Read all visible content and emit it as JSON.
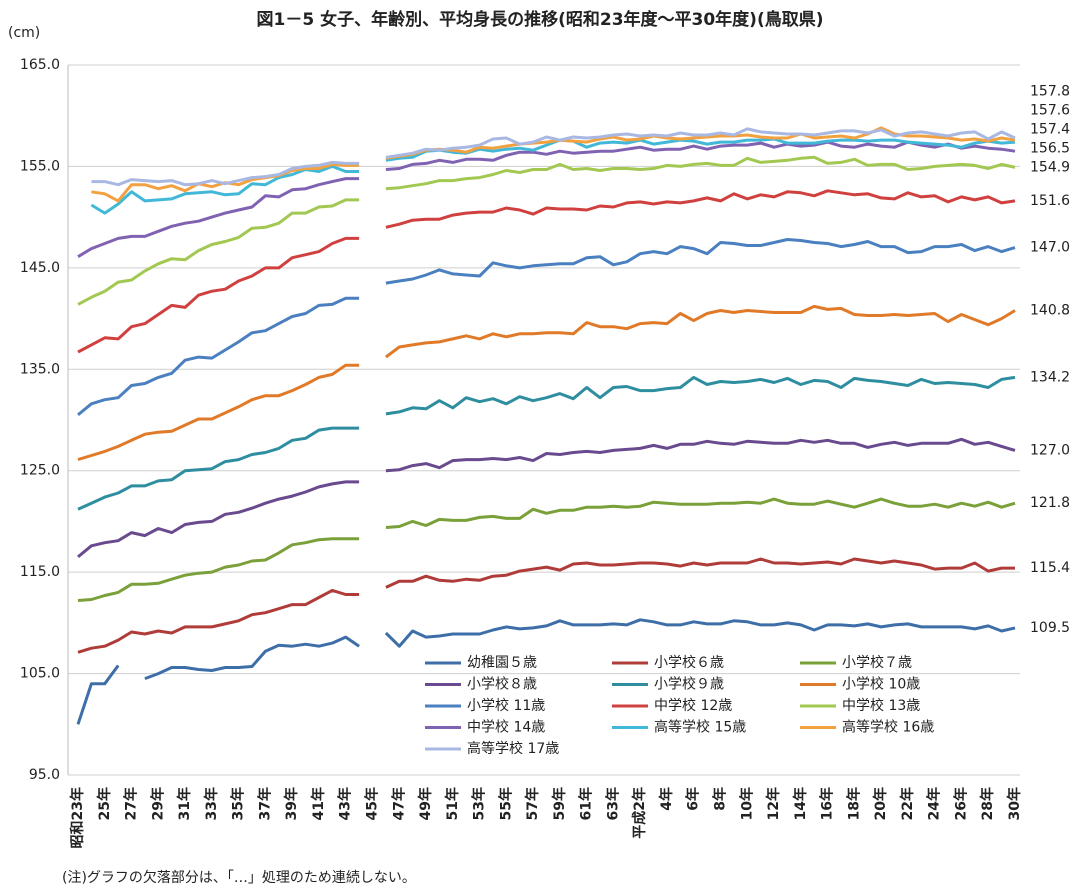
{
  "chart_data": {
    "type": "line",
    "title": "図1－5 女子、年齢別、平均身長の推移(昭和23年度～平30年度)(鳥取県)",
    "unit": "(cm)",
    "note": "(注)グラフの欠落部分は、「…」処理のため連続しない。",
    "categories": [
      "昭和23年",
      null,
      "25年",
      null,
      "27年",
      null,
      "29年",
      null,
      "31年",
      null,
      "33年",
      null,
      "35年",
      null,
      "37年",
      null,
      "39年",
      null,
      "41年",
      null,
      "43年",
      null,
      "45年",
      null,
      "47年",
      null,
      "49年",
      null,
      "51年",
      null,
      "53年",
      null,
      "55年",
      null,
      "57年",
      null,
      "59年",
      null,
      "61年",
      null,
      "63年",
      null,
      "平成2年",
      null,
      "4年",
      null,
      "6年",
      null,
      "8年",
      null,
      "10年",
      null,
      "12年",
      null,
      "14年",
      null,
      "16年",
      null,
      "18年",
      null,
      "20年",
      null,
      "22年",
      null,
      "24年",
      null,
      "26年",
      null,
      "28年",
      null,
      "30年"
    ],
    "ylim": [
      95,
      165
    ],
    "yticks": [
      {
        "value": 95,
        "label": "95.0"
      },
      {
        "value": 105,
        "label": "105.0"
      },
      {
        "value": 115,
        "label": "115.0"
      },
      {
        "value": 125,
        "label": "125.0"
      },
      {
        "value": 135,
        "label": "135.0"
      },
      {
        "value": 145,
        "label": "145.0"
      },
      {
        "value": 155,
        "label": "155.0"
      },
      {
        "value": 165,
        "label": "165.0"
      }
    ],
    "grid": true,
    "series": [
      {
        "name": "幼稚園５歳",
        "color": "#3d6ea8",
        "end_label": "109.5",
        "values": [
          100.0,
          104.0,
          104.0,
          105.8,
          null,
          104.5,
          105.0,
          105.6,
          105.6,
          105.4,
          105.3,
          105.6,
          105.6,
          105.7,
          107.2,
          107.8,
          107.7,
          107.9,
          107.7,
          108.0,
          108.6,
          107.7,
          null,
          109.0,
          107.7,
          109.2,
          108.6,
          108.7,
          108.9,
          108.9,
          108.9,
          109.3,
          109.6,
          109.4,
          109.5,
          109.7,
          110.2,
          109.8,
          109.8,
          109.8,
          109.9,
          109.8,
          110.3,
          110.1,
          109.8,
          109.8,
          110.1,
          109.9,
          109.9,
          110.2,
          110.1,
          109.8,
          109.8,
          110.0,
          109.8,
          109.3,
          109.8,
          109.8,
          109.7,
          109.9,
          109.6,
          109.8,
          109.9,
          109.6,
          109.6,
          109.6,
          109.6,
          109.4,
          109.7,
          109.2,
          109.5
        ]
      },
      {
        "name": "小学校６歳",
        "color": "#b03c3a",
        "end_label": "115.4",
        "values": [
          107.1,
          107.5,
          107.7,
          108.3,
          109.1,
          108.9,
          109.2,
          109.0,
          109.6,
          109.6,
          109.6,
          109.9,
          110.2,
          110.8,
          111.0,
          111.4,
          111.8,
          111.8,
          112.5,
          113.2,
          112.8,
          112.8,
          null,
          113.5,
          114.1,
          114.1,
          114.6,
          114.2,
          114.1,
          114.3,
          114.2,
          114.6,
          114.7,
          115.1,
          115.3,
          115.5,
          115.2,
          115.8,
          115.9,
          115.7,
          115.7,
          115.8,
          115.9,
          115.9,
          115.8,
          115.6,
          115.9,
          115.7,
          115.9,
          115.9,
          115.9,
          116.3,
          115.9,
          115.9,
          115.8,
          115.9,
          116.0,
          115.8,
          116.3,
          116.1,
          115.9,
          116.1,
          115.9,
          115.7,
          115.3,
          115.4,
          115.4,
          115.9,
          115.1,
          115.4,
          115.4
        ]
      },
      {
        "name": "小学校７歳",
        "color": "#7aa03a",
        "end_label": "121.8",
        "values": [
          112.2,
          112.3,
          112.7,
          113.0,
          113.8,
          113.8,
          113.9,
          114.3,
          114.7,
          114.9,
          115.0,
          115.5,
          115.7,
          116.1,
          116.2,
          116.9,
          117.7,
          117.9,
          118.2,
          118.3,
          118.3,
          118.3,
          null,
          119.4,
          119.5,
          120.0,
          119.6,
          120.2,
          120.1,
          120.1,
          120.4,
          120.5,
          120.3,
          120.3,
          121.2,
          120.8,
          121.1,
          121.1,
          121.4,
          121.4,
          121.5,
          121.4,
          121.5,
          121.9,
          121.8,
          121.7,
          121.7,
          121.7,
          121.8,
          121.8,
          121.9,
          121.8,
          122.2,
          121.8,
          121.7,
          121.7,
          122.0,
          121.7,
          121.4,
          121.8,
          122.2,
          121.8,
          121.5,
          121.5,
          121.7,
          121.4,
          121.8,
          121.5,
          121.9,
          121.4,
          121.8
        ]
      },
      {
        "name": "小学校８歳",
        "color": "#6a4a8e",
        "end_label": "127.0",
        "values": [
          116.5,
          117.6,
          117.9,
          118.1,
          118.9,
          118.6,
          119.3,
          118.9,
          119.7,
          119.9,
          120.0,
          120.7,
          120.9,
          121.3,
          121.8,
          122.2,
          122.5,
          122.9,
          123.4,
          123.7,
          123.9,
          123.9,
          null,
          125.0,
          125.1,
          125.5,
          125.7,
          125.3,
          126.0,
          126.1,
          126.1,
          126.2,
          126.1,
          126.3,
          126.0,
          126.7,
          126.6,
          126.8,
          126.9,
          126.8,
          127.0,
          127.1,
          127.2,
          127.5,
          127.2,
          127.6,
          127.6,
          127.9,
          127.7,
          127.6,
          127.9,
          127.8,
          127.7,
          127.7,
          128.0,
          127.8,
          128.0,
          127.7,
          127.7,
          127.3,
          127.6,
          127.8,
          127.5,
          127.7,
          127.7,
          127.7,
          128.1,
          127.6,
          127.8,
          127.4,
          127.0
        ]
      },
      {
        "name": "小学校９歳",
        "color": "#2e8ea0",
        "end_label": "134.2",
        "values": [
          121.2,
          121.8,
          122.4,
          122.8,
          123.5,
          123.5,
          124.0,
          124.1,
          125.0,
          125.1,
          125.2,
          125.9,
          126.1,
          126.6,
          126.8,
          127.2,
          128.0,
          128.2,
          129.0,
          129.2,
          129.2,
          129.2,
          null,
          130.6,
          130.8,
          131.2,
          131.1,
          131.9,
          131.2,
          132.2,
          131.8,
          132.1,
          131.6,
          132.3,
          131.9,
          132.2,
          132.6,
          132.1,
          133.2,
          132.2,
          133.2,
          133.3,
          132.9,
          132.9,
          133.1,
          133.2,
          134.2,
          133.5,
          133.8,
          133.7,
          133.8,
          134.0,
          133.7,
          134.1,
          133.5,
          133.9,
          133.8,
          133.2,
          134.1,
          133.9,
          133.8,
          133.6,
          133.4,
          134.0,
          133.6,
          133.7,
          133.6,
          133.5,
          133.2,
          134.0,
          134.2
        ]
      },
      {
        "name": "小学校 10歳",
        "color": "#e07a28",
        "end_label": "140.8",
        "values": [
          126.1,
          126.5,
          126.9,
          127.4,
          128.0,
          128.6,
          128.8,
          128.9,
          129.5,
          130.1,
          130.1,
          130.7,
          131.3,
          132.0,
          132.4,
          132.4,
          132.9,
          133.5,
          134.2,
          134.5,
          135.4,
          135.4,
          null,
          136.2,
          137.2,
          137.4,
          137.6,
          137.7,
          138.0,
          138.3,
          138.0,
          138.5,
          138.2,
          138.5,
          138.5,
          138.6,
          138.6,
          138.5,
          139.6,
          139.2,
          139.2,
          139.0,
          139.5,
          139.6,
          139.5,
          140.5,
          139.8,
          140.5,
          140.8,
          140.6,
          140.8,
          140.7,
          140.6,
          140.6,
          140.6,
          141.2,
          140.9,
          141.0,
          140.4,
          140.3,
          140.3,
          140.4,
          140.3,
          140.4,
          140.5,
          139.7,
          140.4,
          139.9,
          139.4,
          140.0,
          140.8
        ]
      },
      {
        "name": "小学校 11歳",
        "color": "#4a7fc0",
        "end_label": "147.0",
        "values": [
          130.5,
          131.6,
          132.0,
          132.2,
          133.4,
          133.6,
          134.2,
          134.6,
          135.9,
          136.2,
          136.1,
          136.9,
          137.7,
          138.6,
          138.8,
          139.5,
          140.2,
          140.5,
          141.3,
          141.4,
          142.0,
          142.0,
          null,
          143.5,
          143.7,
          143.9,
          144.3,
          144.8,
          144.4,
          144.3,
          144.2,
          145.5,
          145.2,
          145.0,
          145.2,
          145.3,
          145.4,
          145.4,
          146.0,
          146.1,
          145.3,
          145.6,
          146.4,
          146.6,
          146.4,
          147.1,
          146.9,
          146.4,
          147.5,
          147.4,
          147.2,
          147.2,
          147.5,
          147.8,
          147.7,
          147.5,
          147.4,
          147.1,
          147.3,
          147.6,
          147.1,
          147.1,
          146.5,
          146.6,
          147.1,
          147.1,
          147.3,
          146.7,
          147.1,
          146.6,
          147.0
        ]
      },
      {
        "name": "中学校 12歳",
        "color": "#d0403e",
        "end_label": "151.6",
        "values": [
          136.7,
          137.4,
          138.1,
          138.0,
          139.2,
          139.5,
          140.4,
          141.3,
          141.1,
          142.3,
          142.7,
          142.9,
          143.7,
          144.2,
          145.0,
          145.0,
          146.0,
          146.3,
          146.6,
          147.4,
          147.9,
          147.9,
          null,
          149.0,
          149.3,
          149.7,
          149.8,
          149.8,
          150.2,
          150.4,
          150.5,
          150.5,
          150.9,
          150.7,
          150.3,
          150.9,
          150.8,
          150.8,
          150.7,
          151.1,
          151.0,
          151.4,
          151.5,
          151.3,
          151.5,
          151.4,
          151.6,
          151.9,
          151.6,
          152.3,
          151.8,
          152.2,
          152.0,
          152.5,
          152.4,
          152.1,
          152.6,
          152.4,
          152.2,
          152.3,
          151.9,
          151.8,
          152.4,
          152.0,
          152.1,
          151.5,
          152.0,
          151.7,
          152.0,
          151.4,
          151.6
        ]
      },
      {
        "name": "中学校 13歳",
        "color": "#a2c852",
        "end_label": "154.9",
        "values": [
          141.4,
          142.1,
          142.7,
          143.6,
          143.8,
          144.7,
          145.4,
          145.9,
          145.8,
          146.7,
          147.3,
          147.6,
          148.0,
          148.9,
          149.0,
          149.4,
          150.4,
          150.4,
          151.0,
          151.1,
          151.7,
          151.7,
          null,
          152.8,
          152.9,
          153.1,
          153.3,
          153.6,
          153.6,
          153.8,
          153.9,
          154.2,
          154.6,
          154.4,
          154.7,
          154.7,
          155.2,
          154.7,
          154.8,
          154.6,
          154.8,
          154.8,
          154.7,
          154.8,
          155.1,
          155.0,
          155.2,
          155.3,
          155.1,
          155.1,
          155.8,
          155.4,
          155.5,
          155.6,
          155.8,
          155.9,
          155.3,
          155.4,
          155.7,
          155.1,
          155.2,
          155.2,
          154.7,
          154.8,
          155.0,
          155.1,
          155.2,
          155.1,
          154.8,
          155.2,
          154.9
        ]
      },
      {
        "name": "中学校 14歳",
        "color": "#8062b2",
        "end_label": "156.5",
        "values": [
          146.1,
          146.9,
          147.4,
          147.9,
          148.1,
          148.1,
          148.6,
          149.1,
          149.4,
          149.6,
          150.0,
          150.4,
          150.7,
          151.0,
          152.1,
          152.0,
          152.7,
          152.8,
          153.2,
          153.5,
          153.8,
          153.8,
          null,
          154.7,
          154.8,
          155.2,
          155.3,
          155.6,
          155.4,
          155.7,
          155.7,
          155.6,
          156.1,
          156.4,
          156.4,
          156.2,
          156.5,
          156.3,
          156.4,
          156.5,
          156.5,
          156.7,
          156.9,
          156.6,
          156.7,
          156.7,
          157.0,
          156.7,
          157.0,
          157.1,
          157.1,
          157.3,
          156.9,
          157.2,
          157.0,
          157.1,
          157.4,
          157.0,
          156.9,
          157.2,
          157.0,
          156.9,
          157.4,
          157.1,
          156.9,
          157.2,
          156.8,
          157.0,
          156.8,
          156.7,
          156.5
        ]
      },
      {
        "name": "高等学校 15歳",
        "color": "#42b8d8",
        "end_label": "157.4",
        "values": [
          null,
          151.2,
          150.4,
          151.3,
          152.5,
          151.6,
          151.7,
          151.8,
          152.3,
          152.4,
          152.5,
          152.2,
          152.3,
          153.3,
          153.2,
          153.9,
          154.2,
          154.7,
          154.5,
          155.0,
          154.5,
          154.5,
          null,
          155.6,
          155.8,
          155.9,
          156.5,
          156.6,
          156.4,
          156.3,
          156.7,
          156.5,
          156.7,
          156.8,
          156.6,
          157.1,
          157.6,
          157.5,
          156.9,
          157.3,
          157.4,
          157.3,
          157.6,
          157.2,
          157.4,
          157.6,
          157.5,
          157.2,
          157.4,
          157.4,
          157.6,
          157.6,
          157.7,
          157.3,
          157.3,
          157.3,
          157.5,
          157.6,
          157.6,
          157.5,
          157.6,
          157.6,
          157.4,
          157.3,
          157.2,
          157.1,
          156.9,
          157.3,
          157.5,
          157.3,
          157.4
        ]
      },
      {
        "name": "高等学校 16歳",
        "color": "#f2a140",
        "end_label": "157.6",
        "values": [
          null,
          152.5,
          152.3,
          151.6,
          153.2,
          153.2,
          152.8,
          153.1,
          152.6,
          153.3,
          153.0,
          153.4,
          153.2,
          153.7,
          153.9,
          154.1,
          154.6,
          154.8,
          154.8,
          155.2,
          155.1,
          155.1,
          null,
          155.8,
          156.0,
          156.2,
          156.6,
          156.7,
          156.6,
          156.4,
          156.9,
          156.8,
          157.0,
          157.2,
          157.3,
          157.4,
          157.6,
          157.5,
          157.4,
          157.7,
          157.9,
          157.6,
          157.7,
          158.0,
          157.8,
          157.7,
          157.8,
          157.9,
          158.0,
          158.0,
          158.1,
          157.9,
          157.8,
          157.8,
          158.2,
          157.8,
          157.9,
          158.0,
          157.8,
          158.2,
          158.8,
          158.2,
          158.0,
          158.0,
          157.9,
          157.8,
          157.6,
          157.7,
          157.5,
          157.8,
          157.6
        ]
      },
      {
        "name": "高等学校 17歳",
        "color": "#a9b8e2",
        "end_label": "157.8",
        "values": [
          null,
          153.5,
          153.5,
          153.2,
          153.7,
          153.6,
          153.5,
          153.6,
          153.2,
          153.3,
          153.6,
          153.3,
          153.6,
          153.9,
          154.0,
          154.2,
          154.8,
          155.0,
          155.1,
          155.4,
          155.3,
          155.3,
          null,
          155.9,
          156.1,
          156.3,
          156.7,
          156.6,
          156.8,
          156.9,
          157.1,
          157.7,
          157.8,
          157.2,
          157.4,
          157.9,
          157.6,
          157.9,
          157.8,
          157.9,
          158.1,
          158.2,
          158.0,
          158.1,
          158.0,
          158.3,
          158.1,
          158.1,
          158.3,
          158.1,
          158.7,
          158.4,
          158.3,
          158.2,
          158.2,
          158.1,
          158.3,
          158.5,
          158.5,
          158.3,
          158.6,
          158.0,
          158.3,
          158.4,
          158.2,
          158.0,
          158.3,
          158.4,
          157.7,
          158.4,
          157.8
        ]
      }
    ]
  }
}
